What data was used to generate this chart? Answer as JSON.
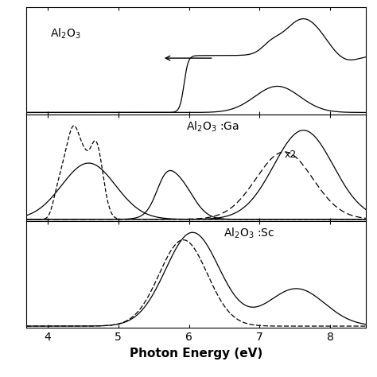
{
  "xlabel": "Photon Energy (eV)",
  "xlim": [
    3.7,
    8.5
  ],
  "x_ticks": [
    4,
    5,
    6,
    7,
    8
  ],
  "panel1_label": "Al$_2$O$_3$",
  "panel2_label": "Al$_2$O$_3$ :Ga",
  "panel3_label": "Al$_2$O$_3$ :Sc",
  "x2_label": "x2",
  "figsize": [
    4.74,
    4.74
  ],
  "dpi": 100
}
